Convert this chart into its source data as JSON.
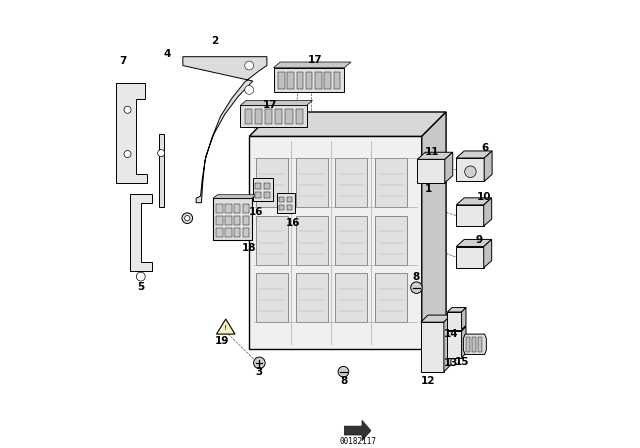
{
  "background_color": "#ffffff",
  "diagram_color": "#000000",
  "part_number": "00182117",
  "lw": 0.7
}
